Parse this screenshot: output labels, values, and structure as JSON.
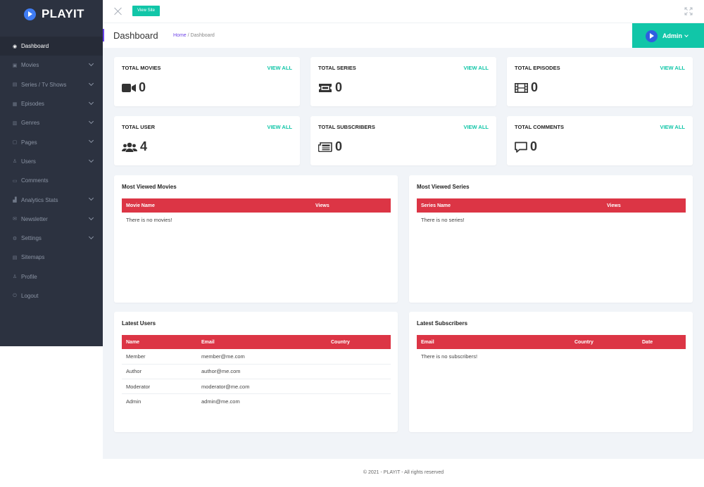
{
  "app": {
    "name": "PLAYIT"
  },
  "sidebar": {
    "items": [
      {
        "label": "Dashboard",
        "icon": "eye-icon",
        "glyph": "◉",
        "chevron": false,
        "active": true
      },
      {
        "label": "Movies",
        "icon": "video-icon",
        "glyph": "▣",
        "chevron": true
      },
      {
        "label": "Series / Tv Shows",
        "icon": "ticket-icon",
        "glyph": "▤",
        "chevron": true
      },
      {
        "label": "Episodes",
        "icon": "film-icon",
        "glyph": "▦",
        "chevron": true
      },
      {
        "label": "Genres",
        "icon": "genres-icon",
        "glyph": "▥",
        "chevron": true
      },
      {
        "label": "Pages",
        "icon": "pages-icon",
        "glyph": "▢",
        "chevron": true
      },
      {
        "label": "Users",
        "icon": "user-icon",
        "glyph": "♙",
        "chevron": true
      },
      {
        "label": "Comments",
        "icon": "comment-icon",
        "glyph": "▭",
        "chevron": false
      },
      {
        "label": "Analytics Stats",
        "icon": "chart-icon",
        "glyph": "▟",
        "chevron": true
      },
      {
        "label": "Newsletter",
        "icon": "mail-icon",
        "glyph": "✉",
        "chevron": true
      },
      {
        "label": "Settings",
        "icon": "gear-icon",
        "glyph": "⚙",
        "chevron": true
      },
      {
        "label": "Sitemaps",
        "icon": "sitemap-icon",
        "glyph": "▤",
        "chevron": false
      },
      {
        "label": "Profile",
        "icon": "profile-icon",
        "glyph": "♙",
        "chevron": false
      },
      {
        "label": "Logout",
        "icon": "power-icon",
        "glyph": "⏻",
        "chevron": false
      }
    ]
  },
  "topbar": {
    "view_site_label": "View Site"
  },
  "header": {
    "title": "Dashboard",
    "breadcrumb_home": "Home",
    "breadcrumb_separator": "/",
    "breadcrumb_current": "Dashboard",
    "user_label": "Admin"
  },
  "stats": [
    {
      "title": "TOTAL MOVIES",
      "link": "VIEW ALL",
      "value": "0",
      "icon": "video-camera-icon"
    },
    {
      "title": "TOTAL SERIES",
      "link": "VIEW ALL",
      "value": "0",
      "icon": "ticket-icon"
    },
    {
      "title": "TOTAL EPISODES",
      "link": "VIEW ALL",
      "value": "0",
      "icon": "film-icon"
    },
    {
      "title": "TOTAL USER",
      "link": "VIEW ALL",
      "value": "4",
      "icon": "users-icon"
    },
    {
      "title": "TOTAL SUBSCRIBERS",
      "link": "VIEW ALL",
      "value": "0",
      "icon": "newspaper-icon"
    },
    {
      "title": "TOTAL COMMENTS",
      "link": "VIEW ALL",
      "value": "0",
      "icon": "comment-icon"
    }
  ],
  "most_viewed_movies": {
    "title": "Most Viewed Movies",
    "columns": [
      "Movie Name",
      "Views"
    ],
    "empty": "There is no movies!"
  },
  "most_viewed_series": {
    "title": "Most Viewed Series",
    "columns": [
      "Series Name",
      "Views"
    ],
    "empty": "There is no series!"
  },
  "latest_users": {
    "title": "Latest Users",
    "columns": [
      "Name",
      "Email",
      "Country"
    ],
    "rows": [
      [
        "Member",
        "member@me.com",
        ""
      ],
      [
        "Author",
        "author@me.com",
        ""
      ],
      [
        "Moderator",
        "moderator@me.com",
        ""
      ],
      [
        "Admin",
        "admin@me.com",
        ""
      ]
    ]
  },
  "latest_subscribers": {
    "title": "Latest Subscribers",
    "columns": [
      "Email",
      "Country",
      "Date"
    ],
    "empty": "There is no subscribers!"
  },
  "footer": {
    "text": "© 2021 - PLAYIT - All rights reserved"
  },
  "colors": {
    "accent": "#11c6a8",
    "sidebar": "#2c3240",
    "table_header": "#dc3545",
    "purple": "#7045e8"
  }
}
